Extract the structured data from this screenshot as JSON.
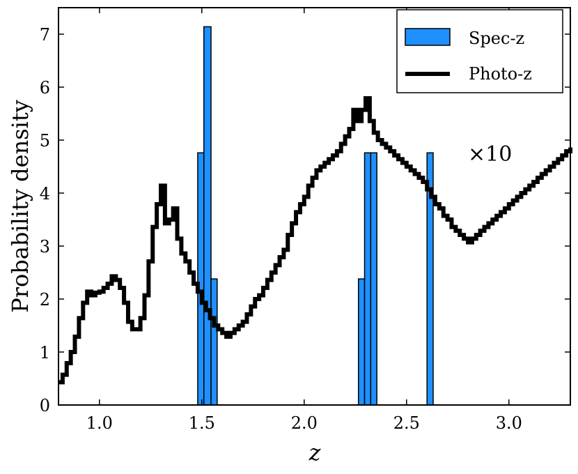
{
  "chart_data": {
    "type": "histogram",
    "title": "",
    "xlabel": "z",
    "ylabel": "Probability density",
    "xlim": [
      0.8,
      3.3
    ],
    "ylim": [
      0,
      7.5
    ],
    "xticks": [
      1.0,
      1.5,
      2.0,
      2.5,
      3.0
    ],
    "xtick_labels": [
      "1.0",
      "1.5",
      "2.0",
      "2.5",
      "3.0"
    ],
    "yticks": [
      0,
      1,
      2,
      3,
      4,
      5,
      6,
      7
    ],
    "ytick_labels": [
      "0",
      "1",
      "2",
      "3",
      "4",
      "5",
      "6",
      "7"
    ],
    "legend": {
      "position": "top-right",
      "entries": [
        "Spec-z",
        "Photo-z"
      ]
    },
    "annotation": "×10",
    "series": [
      {
        "name": "Spec-z",
        "kind": "bars",
        "color": "#1e90ff",
        "bars": [
          {
            "x0": 1.48,
            "x1": 1.51,
            "y": 4.76
          },
          {
            "x0": 1.51,
            "x1": 1.545,
            "y": 7.14
          },
          {
            "x0": 1.545,
            "x1": 1.575,
            "y": 2.38
          },
          {
            "x0": 2.265,
            "x1": 2.295,
            "y": 2.38
          },
          {
            "x0": 2.295,
            "x1": 2.325,
            "y": 4.76
          },
          {
            "x0": 2.325,
            "x1": 2.355,
            "y": 4.76
          },
          {
            "x0": 2.6,
            "x1": 2.63,
            "y": 4.76
          }
        ]
      },
      {
        "name": "Photo-z",
        "kind": "step",
        "color": "#000000",
        "scale_note": "×10",
        "points": [
          [
            0.8,
            0.43
          ],
          [
            0.82,
            0.57
          ],
          [
            0.84,
            0.79
          ],
          [
            0.86,
            1.0
          ],
          [
            0.88,
            1.29
          ],
          [
            0.9,
            1.64
          ],
          [
            0.92,
            1.93
          ],
          [
            0.94,
            2.14
          ],
          [
            0.96,
            2.07
          ],
          [
            0.98,
            2.12
          ],
          [
            1.0,
            2.14
          ],
          [
            1.02,
            2.21
          ],
          [
            1.04,
            2.29
          ],
          [
            1.06,
            2.43
          ],
          [
            1.08,
            2.36
          ],
          [
            1.1,
            2.21
          ],
          [
            1.12,
            1.93
          ],
          [
            1.14,
            1.57
          ],
          [
            1.16,
            1.43
          ],
          [
            1.18,
            1.43
          ],
          [
            1.2,
            1.64
          ],
          [
            1.22,
            2.07
          ],
          [
            1.24,
            2.71
          ],
          [
            1.26,
            3.36
          ],
          [
            1.28,
            3.79
          ],
          [
            1.3,
            4.14
          ],
          [
            1.32,
            3.43
          ],
          [
            1.34,
            3.5
          ],
          [
            1.36,
            3.71
          ],
          [
            1.38,
            3.14
          ],
          [
            1.4,
            2.86
          ],
          [
            1.42,
            2.71
          ],
          [
            1.44,
            2.5
          ],
          [
            1.46,
            2.29
          ],
          [
            1.48,
            2.14
          ],
          [
            1.5,
            1.93
          ],
          [
            1.52,
            1.79
          ],
          [
            1.54,
            1.64
          ],
          [
            1.56,
            1.5
          ],
          [
            1.58,
            1.43
          ],
          [
            1.6,
            1.36
          ],
          [
            1.62,
            1.29
          ],
          [
            1.64,
            1.36
          ],
          [
            1.66,
            1.43
          ],
          [
            1.68,
            1.5
          ],
          [
            1.7,
            1.57
          ],
          [
            1.72,
            1.71
          ],
          [
            1.74,
            1.86
          ],
          [
            1.76,
            2.0
          ],
          [
            1.78,
            2.07
          ],
          [
            1.8,
            2.21
          ],
          [
            1.82,
            2.36
          ],
          [
            1.84,
            2.5
          ],
          [
            1.86,
            2.64
          ],
          [
            1.88,
            2.79
          ],
          [
            1.9,
            2.93
          ],
          [
            1.92,
            3.21
          ],
          [
            1.94,
            3.43
          ],
          [
            1.96,
            3.64
          ],
          [
            1.98,
            3.79
          ],
          [
            2.0,
            3.93
          ],
          [
            2.02,
            4.14
          ],
          [
            2.04,
            4.29
          ],
          [
            2.06,
            4.43
          ],
          [
            2.08,
            4.5
          ],
          [
            2.1,
            4.57
          ],
          [
            2.12,
            4.64
          ],
          [
            2.14,
            4.71
          ],
          [
            2.16,
            4.79
          ],
          [
            2.18,
            4.93
          ],
          [
            2.2,
            5.07
          ],
          [
            2.22,
            5.21
          ],
          [
            2.24,
            5.57
          ],
          [
            2.26,
            5.36
          ],
          [
            2.28,
            5.57
          ],
          [
            2.3,
            5.79
          ],
          [
            2.32,
            5.36
          ],
          [
            2.34,
            5.14
          ],
          [
            2.36,
            5.0
          ],
          [
            2.38,
            4.93
          ],
          [
            2.4,
            4.86
          ],
          [
            2.42,
            4.79
          ],
          [
            2.44,
            4.71
          ],
          [
            2.46,
            4.64
          ],
          [
            2.48,
            4.57
          ],
          [
            2.5,
            4.5
          ],
          [
            2.52,
            4.43
          ],
          [
            2.54,
            4.36
          ],
          [
            2.56,
            4.29
          ],
          [
            2.58,
            4.21
          ],
          [
            2.6,
            4.07
          ],
          [
            2.62,
            3.93
          ],
          [
            2.64,
            3.79
          ],
          [
            2.66,
            3.71
          ],
          [
            2.68,
            3.57
          ],
          [
            2.7,
            3.5
          ],
          [
            2.72,
            3.36
          ],
          [
            2.74,
            3.29
          ],
          [
            2.76,
            3.21
          ],
          [
            2.78,
            3.14
          ],
          [
            2.8,
            3.07
          ],
          [
            2.82,
            3.14
          ],
          [
            2.84,
            3.21
          ],
          [
            2.86,
            3.29
          ],
          [
            2.88,
            3.36
          ],
          [
            2.9,
            3.43
          ],
          [
            2.92,
            3.5
          ],
          [
            2.94,
            3.57
          ],
          [
            2.96,
            3.64
          ],
          [
            2.98,
            3.71
          ],
          [
            3.0,
            3.79
          ],
          [
            3.02,
            3.86
          ],
          [
            3.04,
            3.93
          ],
          [
            3.06,
            4.0
          ],
          [
            3.08,
            4.07
          ],
          [
            3.1,
            4.14
          ],
          [
            3.12,
            4.21
          ],
          [
            3.14,
            4.29
          ],
          [
            3.16,
            4.36
          ],
          [
            3.18,
            4.43
          ],
          [
            3.2,
            4.5
          ],
          [
            3.22,
            4.57
          ],
          [
            3.24,
            4.64
          ],
          [
            3.26,
            4.71
          ],
          [
            3.28,
            4.79
          ],
          [
            3.3,
            4.86
          ]
        ]
      }
    ]
  }
}
